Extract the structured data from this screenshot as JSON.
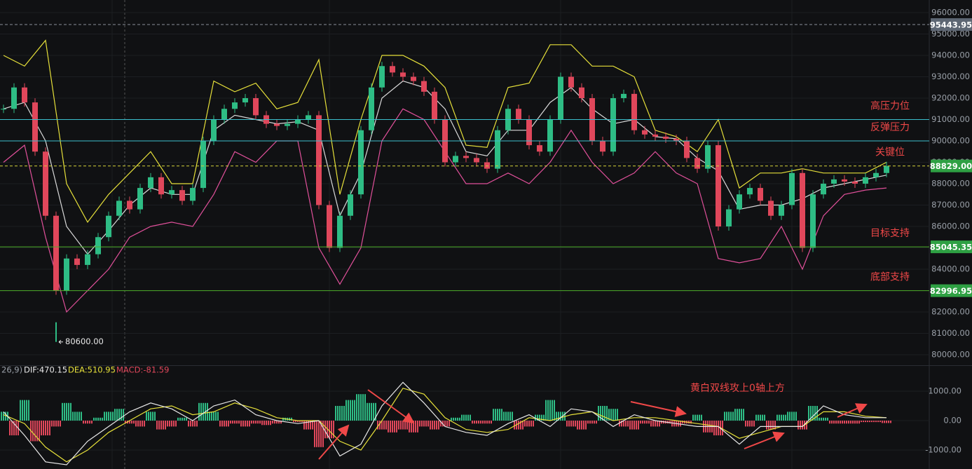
{
  "chart_data": [
    {
      "type": "candlestick",
      "close": [
        91500,
        92500,
        91800,
        89500,
        86500,
        83000,
        84500,
        84200,
        84700,
        85500,
        86500,
        87200,
        86800,
        87800,
        88300,
        87500,
        87700,
        87200,
        87800,
        90000,
        91000,
        91500,
        91800,
        92000,
        91200,
        90800,
        90700,
        90800,
        91000,
        91200,
        87000,
        85000,
        86500,
        87500,
        90500,
        92500,
        93500,
        93200,
        93000,
        92800,
        92300,
        91000,
        89000,
        89300,
        89200,
        89000,
        88700,
        90500,
        91500,
        91000,
        89800,
        89500,
        91000,
        93000,
        92500,
        92000,
        90000,
        89500,
        92000,
        92200,
        90500,
        90300,
        90200,
        90100,
        90000,
        89200,
        88700,
        89800,
        86000,
        86800,
        87500,
        87800,
        87200,
        86500,
        87000,
        88500,
        85000,
        87500,
        88000,
        88200,
        88100,
        88000,
        88300,
        88500,
        88829
      ],
      "up_color": "#2ebd85",
      "down_color": "#e0475b",
      "bands": [
        {
          "color": "#e6e03a",
          "values": [
            94000,
            93500,
            94700,
            88000,
            86200,
            87500,
            88500,
            89500,
            88000,
            88000,
            92800,
            92300,
            92700,
            91500,
            91800,
            93800,
            87500,
            91000,
            94000,
            94000,
            93500,
            92500,
            89800,
            89700,
            92500,
            92700,
            94500,
            94500,
            93500,
            93500,
            93000,
            90500,
            90200,
            89500,
            91000,
            87800,
            88500,
            88500,
            88700,
            88500,
            88500,
            88500,
            89000
          ]
        },
        {
          "color": "#d9d9d9",
          "values": [
            91500,
            91800,
            90000,
            86000,
            84700,
            85800,
            87000,
            87800,
            87500,
            87500,
            90500,
            91200,
            91000,
            90800,
            90900,
            90500,
            86500,
            88500,
            92000,
            92800,
            92500,
            91500,
            89500,
            89300,
            90500,
            90500,
            91800,
            92500,
            91500,
            90800,
            91000,
            90200,
            90100,
            89200,
            88600,
            86800,
            87000,
            87000,
            87300,
            87800,
            88000,
            88200,
            88400
          ]
        },
        {
          "color": "#e0509a",
          "values": [
            89000,
            89800,
            85500,
            82000,
            83000,
            84000,
            85500,
            86000,
            86200,
            86000,
            87500,
            89500,
            89000,
            90000,
            90000,
            85000,
            83300,
            85000,
            90000,
            91500,
            91000,
            89500,
            88000,
            88000,
            88500,
            88000,
            89000,
            90500,
            89000,
            88000,
            88500,
            89500,
            88500,
            88000,
            84500,
            84300,
            84500,
            86000,
            84000,
            86500,
            87500,
            87700,
            87800
          ]
        }
      ],
      "ylim": [
        79500,
        96500
      ],
      "yticks": [
        {
          "value": 96000,
          "label": "96000.00"
        },
        {
          "value": 95000,
          "label": "95000.00"
        },
        {
          "value": 94000,
          "label": "94000.00"
        },
        {
          "value": 93000,
          "label": "93000.00"
        },
        {
          "value": 92000,
          "label": "92000.00"
        },
        {
          "value": 91000,
          "label": "91000.00"
        },
        {
          "value": 90000,
          "label": "90000.00"
        },
        {
          "value": 89000,
          "label": "89000.00"
        },
        {
          "value": 88000,
          "label": "88000.00"
        },
        {
          "value": 87000,
          "label": "87000.00"
        },
        {
          "value": 86000,
          "label": "86000.00"
        },
        {
          "value": 85000,
          "label": "85000.00"
        },
        {
          "value": 84000,
          "label": "84000.00"
        },
        {
          "value": 83000,
          "label": "83000.00"
        },
        {
          "value": 82000,
          "label": "82000.00"
        },
        {
          "value": 81000,
          "label": "81000.00"
        },
        {
          "value": 80000,
          "label": "80000.00"
        }
      ],
      "levels": [
        {
          "value": 95443.95,
          "color": "#8a8f98",
          "dashed": true,
          "tag": "95443.95",
          "tag_color": "#5d6673"
        },
        {
          "value": 91000,
          "color": "#3bbfcc",
          "name": "高压力位"
        },
        {
          "value": 90000,
          "color": "#3bbfcc",
          "name": "反弹压力"
        },
        {
          "value": 88829,
          "color": "#d4d43a",
          "dashed": true,
          "name": "关键位",
          "tag": "88829.00",
          "tag_color": "#2ea043"
        },
        {
          "value": 85045.35,
          "color": "#4caf28",
          "name": "目标支持",
          "tag": "85045.35",
          "tag_color": "#2ea043"
        },
        {
          "value": 82996.95,
          "color": "#4caf28",
          "name": "底部支持",
          "tag": "82996.95",
          "tag_color": "#2ea043"
        }
      ],
      "low": {
        "value": 80600,
        "label": "80600.00"
      }
    },
    {
      "type": "macd",
      "params": "26,9)",
      "dif": "DIF:470.15",
      "dea": "DEA:510.95",
      "macd": "MACD:-81.59",
      "histogram": [
        300,
        -500,
        700,
        -700,
        -500,
        -200,
        600,
        300,
        -100,
        100,
        300,
        400,
        -100,
        -200,
        300,
        -300,
        -200,
        100,
        -200,
        600,
        300,
        -200,
        -100,
        -200,
        -100,
        -150,
        -100,
        100,
        -50,
        -300,
        -900,
        -600,
        500,
        700,
        900,
        600,
        -300,
        -400,
        -300,
        -400,
        -200,
        -300,
        -200,
        100,
        200,
        -100,
        -100,
        400,
        300,
        -300,
        -200,
        200,
        700,
        300,
        -200,
        -300,
        -100,
        500,
        400,
        -200,
        -300,
        -100,
        -200,
        -100,
        -200,
        -100,
        200,
        -400,
        -500,
        300,
        400,
        -200,
        200,
        -300,
        200,
        300,
        -300,
        500,
        100,
        -100,
        -100,
        -100,
        -50,
        -50,
        -82
      ],
      "dif_values": [
        300,
        -500,
        -1400,
        -1500,
        -700,
        -200,
        300,
        600,
        400,
        0,
        500,
        700,
        200,
        0,
        -100,
        0,
        -1200,
        -800,
        500,
        1300,
        600,
        -200,
        -400,
        -500,
        -100,
        200,
        -200,
        400,
        300,
        -200,
        200,
        0,
        -100,
        -200,
        -200,
        -800,
        -200,
        -200,
        -200,
        500,
        200,
        100,
        100
      ],
      "dea_values": [
        200,
        -100,
        -900,
        -1400,
        -1000,
        -400,
        0,
        400,
        500,
        200,
        300,
        600,
        400,
        100,
        0,
        0,
        -700,
        -1000,
        0,
        1100,
        900,
        100,
        -300,
        -400,
        -300,
        100,
        0,
        200,
        300,
        0,
        100,
        100,
        0,
        -100,
        -200,
        -600,
        -400,
        -200,
        -200,
        300,
        300,
        150,
        100
      ],
      "dif_color": "#e8e8e8",
      "dea_color": "#e6e03a",
      "up_color": "#2ebd85",
      "down_color": "#e0475b",
      "ylim": [
        -1600,
        1850
      ],
      "yticks": [
        {
          "value": 1000,
          "label": "1000.00"
        },
        {
          "value": 0,
          "label": "0.00"
        },
        {
          "value": -1000,
          "label": "-1000.00"
        }
      ],
      "annotation": "黄白双线攻上0轴上方"
    }
  ]
}
